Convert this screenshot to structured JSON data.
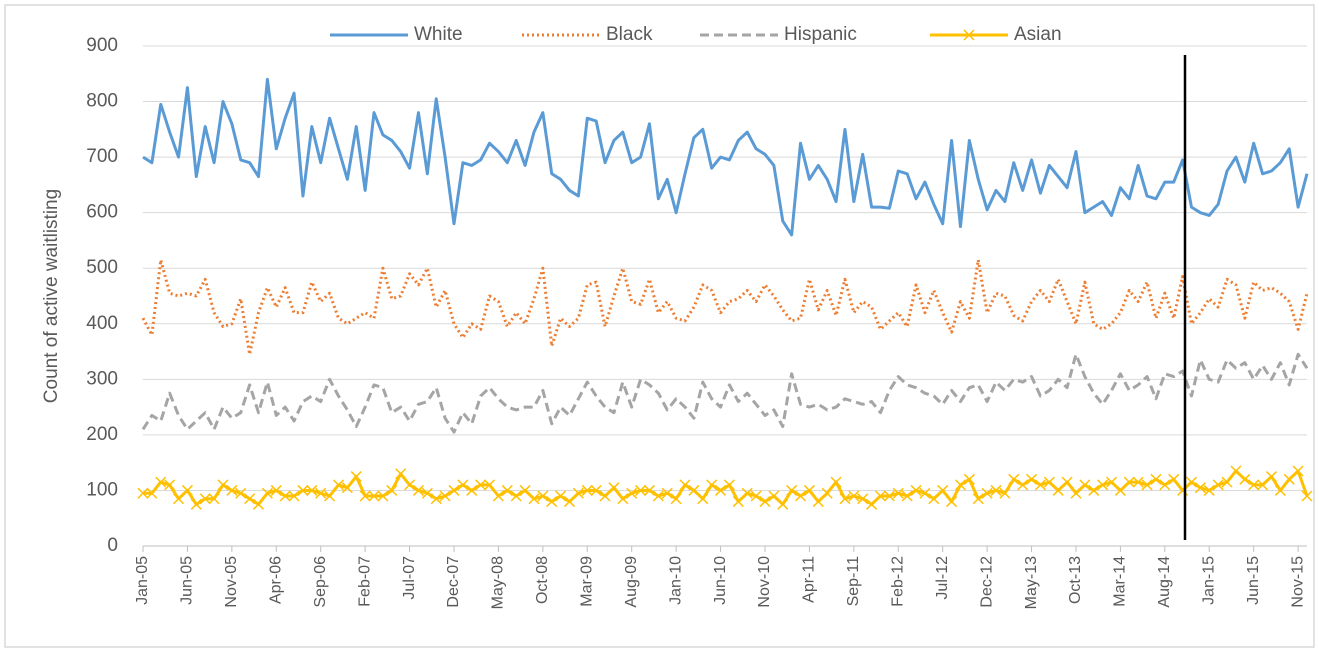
{
  "chart_data": {
    "type": "line",
    "y_label": "Count of active waitlisting",
    "categories": [
      "Jan-05",
      null,
      null,
      null,
      null,
      "Jun-05",
      null,
      null,
      null,
      null,
      "Nov-05",
      null,
      null,
      null,
      null,
      "Apr-06",
      null,
      null,
      null,
      null,
      "Sep-06",
      null,
      null,
      null,
      null,
      "Feb-07",
      null,
      null,
      null,
      null,
      "Jul-07",
      null,
      null,
      null,
      null,
      "Dec-07",
      null,
      null,
      null,
      null,
      "May-08",
      null,
      null,
      null,
      null,
      "Oct-08",
      null,
      null,
      null,
      null,
      "Mar-09",
      null,
      null,
      null,
      null,
      "Aug-09",
      null,
      null,
      null,
      null,
      "Jan-10",
      null,
      null,
      null,
      null,
      "Jun-10",
      null,
      null,
      null,
      null,
      "Nov-10",
      null,
      null,
      null,
      null,
      "Apr-11",
      null,
      null,
      null,
      null,
      "Sep-11",
      null,
      null,
      null,
      null,
      "Feb-12",
      null,
      null,
      null,
      null,
      "Jul-12",
      null,
      null,
      null,
      null,
      "Dec-12",
      null,
      null,
      null,
      null,
      "May-13",
      null,
      null,
      null,
      null,
      "Oct-13",
      null,
      null,
      null,
      null,
      "Mar-14",
      null,
      null,
      null,
      null,
      "Aug-14",
      null,
      null,
      null,
      null,
      "Jan-15",
      null,
      null,
      null,
      null,
      "Jun-15",
      null,
      null,
      null,
      null,
      "Nov-15",
      null
    ],
    "series": [
      {
        "name": "White",
        "color": "#5b9bd5",
        "line_style": "solid",
        "values": [
          700,
          690,
          795,
          745,
          700,
          825,
          665,
          755,
          690,
          800,
          760,
          695,
          690,
          665,
          840,
          715,
          770,
          815,
          630,
          755,
          690,
          770,
          715,
          660,
          755,
          640,
          780,
          740,
          730,
          710,
          680,
          780,
          670,
          805,
          700,
          580,
          690,
          685,
          695,
          725,
          710,
          690,
          730,
          685,
          745,
          780,
          670,
          660,
          640,
          630,
          770,
          765,
          690,
          730,
          745,
          690,
          700,
          760,
          625,
          660,
          600,
          670,
          735,
          750,
          680,
          700,
          695,
          730,
          745,
          715,
          705,
          685,
          585,
          560,
          725,
          660,
          685,
          660,
          620,
          750,
          620,
          705,
          610,
          610,
          608,
          675,
          670,
          625,
          655,
          615,
          580,
          730,
          575,
          730,
          660,
          605,
          640,
          620,
          690,
          640,
          695,
          635,
          685,
          665,
          645,
          710,
          600,
          610,
          620,
          595,
          645,
          625,
          685,
          630,
          625,
          655,
          655,
          695,
          610,
          600,
          595,
          615,
          675,
          700,
          655,
          725,
          670,
          675,
          690,
          715,
          610,
          670
        ]
      },
      {
        "name": "Black",
        "color": "#ed7d31",
        "line_style": "dotted",
        "values": [
          410,
          380,
          515,
          455,
          450,
          455,
          450,
          480,
          420,
          395,
          400,
          445,
          345,
          420,
          465,
          430,
          465,
          420,
          420,
          475,
          440,
          455,
          410,
          400,
          410,
          420,
          410,
          500,
          445,
          450,
          490,
          470,
          500,
          430,
          460,
          400,
          375,
          400,
          390,
          450,
          440,
          395,
          420,
          400,
          445,
          500,
          360,
          410,
          395,
          410,
          470,
          475,
          395,
          450,
          500,
          440,
          435,
          480,
          420,
          440,
          410,
          405,
          430,
          470,
          460,
          420,
          440,
          445,
          460,
          440,
          470,
          450,
          425,
          405,
          410,
          480,
          425,
          460,
          415,
          480,
          420,
          440,
          430,
          390,
          405,
          420,
          395,
          470,
          420,
          460,
          420,
          385,
          440,
          410,
          515,
          420,
          455,
          450,
          415,
          405,
          440,
          460,
          440,
          480,
          440,
          400,
          475,
          400,
          390,
          400,
          420,
          460,
          440,
          475,
          410,
          455,
          410,
          485,
          400,
          420,
          445,
          430,
          480,
          470,
          410,
          475,
          460,
          465,
          455,
          440,
          390,
          455
        ]
      },
      {
        "name": "Hispanic",
        "color": "#a5a5a5",
        "line_style": "dashed",
        "values": [
          210,
          235,
          225,
          275,
          235,
          210,
          225,
          240,
          210,
          250,
          230,
          240,
          290,
          240,
          295,
          235,
          250,
          225,
          260,
          270,
          260,
          300,
          270,
          245,
          215,
          250,
          290,
          285,
          240,
          250,
          225,
          255,
          260,
          285,
          230,
          205,
          240,
          220,
          270,
          285,
          265,
          250,
          245,
          250,
          250,
          280,
          220,
          250,
          235,
          265,
          295,
          270,
          250,
          240,
          295,
          250,
          300,
          290,
          275,
          245,
          265,
          250,
          230,
          295,
          265,
          250,
          290,
          260,
          275,
          255,
          235,
          245,
          215,
          310,
          255,
          250,
          255,
          245,
          250,
          265,
          260,
          255,
          260,
          240,
          280,
          305,
          290,
          285,
          275,
          270,
          255,
          280,
          260,
          285,
          290,
          260,
          295,
          280,
          300,
          295,
          305,
          270,
          280,
          300,
          285,
          345,
          305,
          275,
          255,
          280,
          310,
          280,
          290,
          305,
          265,
          310,
          305,
          315,
          270,
          335,
          300,
          295,
          335,
          320,
          330,
          300,
          325,
          300,
          330,
          290,
          345,
          320
        ]
      },
      {
        "name": "Asian",
        "color": "#ffc000",
        "line_style": "solid",
        "marker": "x",
        "values": [
          95,
          95,
          115,
          110,
          85,
          100,
          75,
          85,
          85,
          110,
          100,
          95,
          85,
          75,
          95,
          100,
          90,
          90,
          100,
          100,
          95,
          90,
          110,
          105,
          125,
          90,
          90,
          90,
          100,
          130,
          110,
          100,
          95,
          85,
          90,
          100,
          110,
          100,
          110,
          110,
          90,
          100,
          90,
          100,
          85,
          90,
          80,
          90,
          80,
          95,
          100,
          100,
          90,
          105,
          85,
          95,
          100,
          100,
          90,
          95,
          85,
          110,
          100,
          85,
          110,
          100,
          110,
          80,
          95,
          90,
          80,
          90,
          75,
          100,
          90,
          100,
          80,
          95,
          115,
          85,
          90,
          85,
          75,
          90,
          90,
          95,
          90,
          100,
          95,
          85,
          100,
          80,
          110,
          120,
          85,
          95,
          100,
          95,
          120,
          110,
          120,
          110,
          115,
          100,
          115,
          95,
          110,
          100,
          110,
          115,
          100,
          115,
          115,
          110,
          120,
          110,
          120,
          100,
          115,
          105,
          100,
          110,
          115,
          135,
          120,
          110,
          110,
          125,
          100,
          120,
          135,
          90
        ]
      }
    ],
    "ylim": [
      0,
      900
    ],
    "yticks": [
      0,
      100,
      200,
      300,
      400,
      500,
      600,
      700,
      800,
      900
    ],
    "grid": true,
    "legend": "top"
  }
}
